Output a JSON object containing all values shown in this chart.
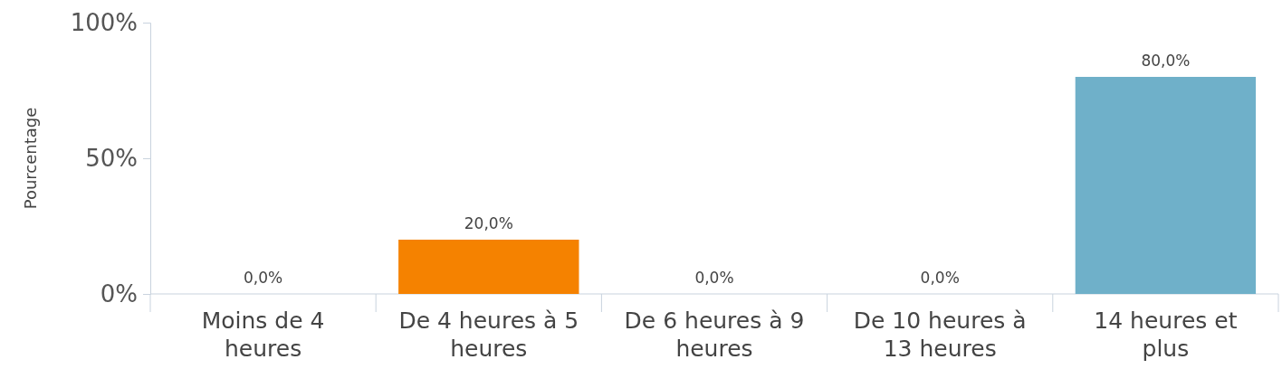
{
  "chart_data": {
    "type": "bar",
    "ylabel": "Pourcentage",
    "categories": [
      "Moins de 4 heures",
      "De 4 heures à 5 heures",
      "De 6 heures à 9 heures",
      "De 10 heures à 13 heures",
      "14 heures et plus"
    ],
    "values": [
      0,
      20,
      0,
      0,
      80
    ],
    "colors": [
      "#6fb0c9",
      "#f58200",
      "#6fb0c9",
      "#6fb0c9",
      "#6fb0c9"
    ],
    "value_labels": [
      "0,0%",
      "20,0%",
      "0,0%",
      "0,0%",
      "80,0%"
    ],
    "ylim": [
      0,
      100
    ],
    "yticks": [
      {
        "value": 0,
        "label": "0%"
      },
      {
        "value": 50,
        "label": "50%"
      },
      {
        "value": 100,
        "label": "100%"
      }
    ],
    "grid": false
  }
}
